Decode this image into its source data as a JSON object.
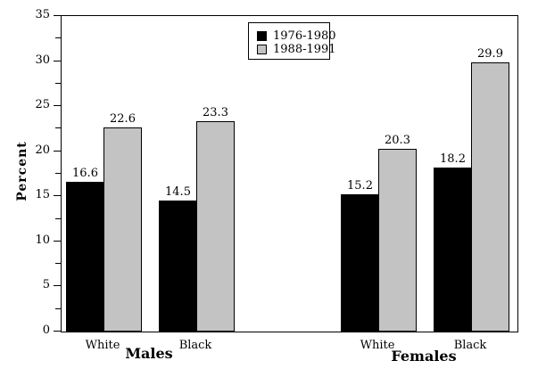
{
  "chart_data": {
    "type": "bar",
    "title": "",
    "xlabel": "",
    "ylabel": "Percent",
    "ylim": [
      0,
      35
    ],
    "ytick_step": 5,
    "ytick_minor_step": 2.5,
    "grid": false,
    "legend_position": "top-center",
    "group_labels": [
      "Males",
      "Females"
    ],
    "categories": [
      "White",
      "Black",
      "White",
      "Black"
    ],
    "category_groups": [
      0,
      0,
      1,
      1
    ],
    "series": [
      {
        "name": "1976-1980",
        "color": "#000000",
        "values": [
          16.6,
          14.5,
          15.2,
          18.2
        ]
      },
      {
        "name": "1988-1991",
        "color": "#c3c3c3",
        "values": [
          22.6,
          23.3,
          20.3,
          29.9
        ]
      }
    ],
    "value_label_decimals": 1
  },
  "colors": {
    "background": "#ffffff",
    "axis": "#000000",
    "bar_border": "#000000",
    "series_1976_1980": "#000000",
    "series_1988_1991": "#c3c3c3"
  }
}
